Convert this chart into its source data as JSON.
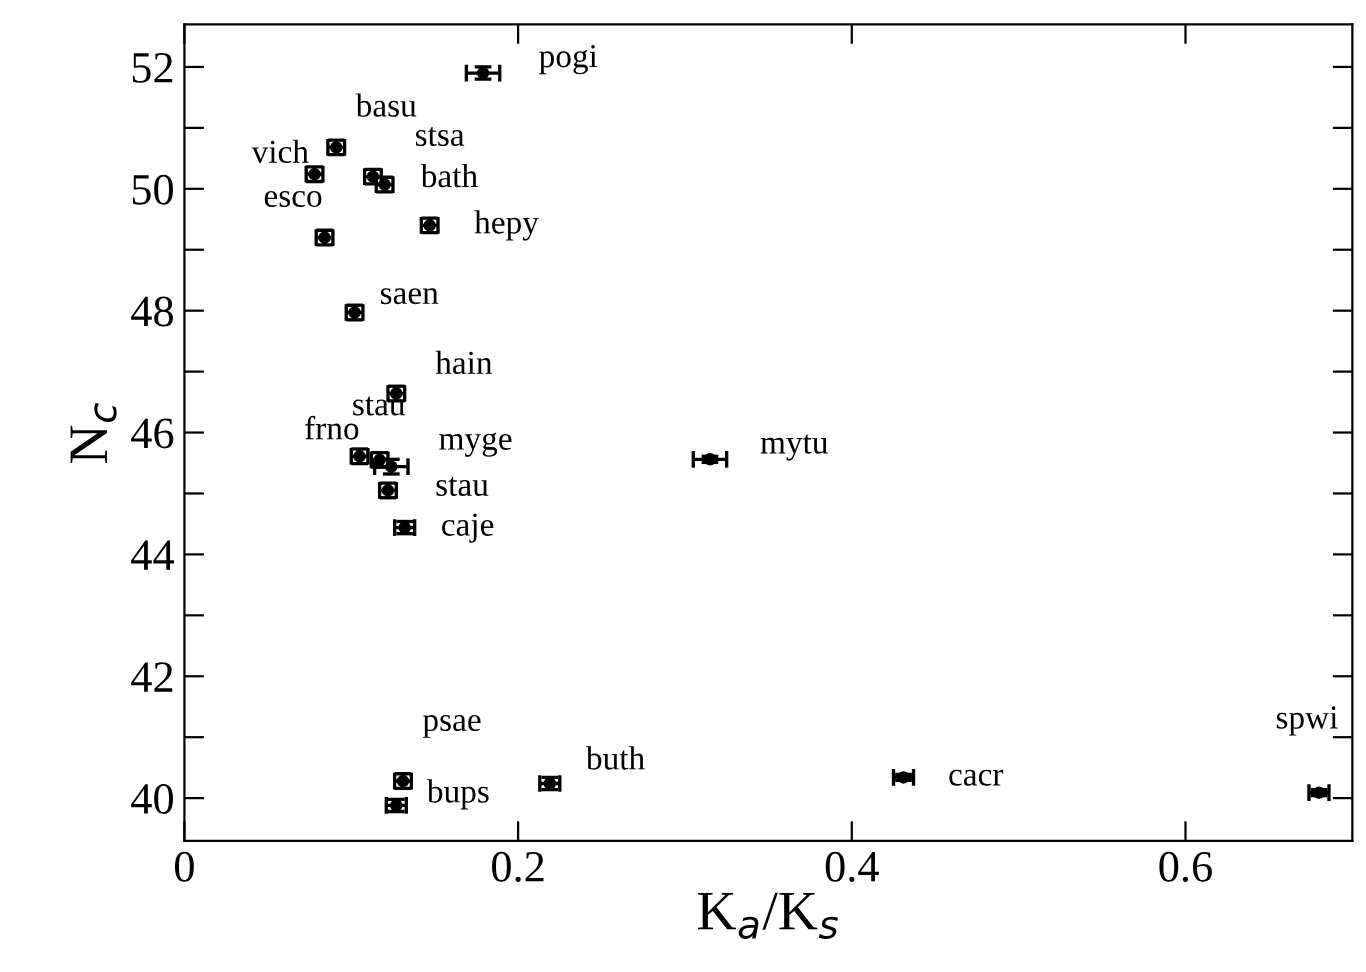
{
  "chart_data": {
    "type": "scatter",
    "xlabel": "K$_{a}$/K$_{s}$",
    "ylabel": "N$_{c}$",
    "x": [
      0.179,
      0.091,
      0.078,
      0.113,
      0.12,
      0.147,
      0.084,
      0.102,
      0.127,
      0.105,
      0.117,
      0.124,
      0.122,
      0.132,
      0.315,
      0.219,
      0.131,
      0.127,
      0.431,
      0.68
    ],
    "values": [
      51.9,
      50.68,
      50.24,
      50.2,
      50.07,
      49.4,
      49.2,
      47.97,
      46.64,
      45.61,
      45.55,
      45.44,
      45.05,
      44.44,
      45.56,
      40.24,
      40.28,
      39.88,
      40.34,
      40.09
    ],
    "xerrors": [
      0.01,
      0.005,
      0.005,
      0.005,
      0.005,
      0.005,
      0.005,
      0.005,
      0.005,
      0.005,
      0.005,
      0.01,
      0.005,
      0.006,
      0.01,
      0.006,
      0.005,
      0.006,
      0.006,
      0.006
    ],
    "errors": [
      0.1,
      0.12,
      0.12,
      0.12,
      0.12,
      0.12,
      0.12,
      0.12,
      0.12,
      0.12,
      0.12,
      0.12,
      0.12,
      0.1,
      0.05,
      0.1,
      0.12,
      0.1,
      0.05,
      0.05
    ],
    "color": "#000000",
    "marker": "circle",
    "annotations": [
      {
        "text": "pogi",
        "x": 0.179,
        "y": 51.9
      },
      {
        "text": "basu",
        "x": 0.091,
        "y": 50.68
      },
      {
        "text": "vich",
        "x": 0.078,
        "y": 50.24
      },
      {
        "text": "stsa",
        "x": 0.113,
        "y": 50.2
      },
      {
        "text": "bath",
        "x": 0.12,
        "y": 50.07
      },
      {
        "text": "hepy",
        "x": 0.147,
        "y": 49.4
      },
      {
        "text": "esco",
        "x": 0.084,
        "y": 49.2
      },
      {
        "text": "saen",
        "x": 0.102,
        "y": 47.97
      },
      {
        "text": "hain",
        "x": 0.127,
        "y": 46.64
      },
      {
        "text": "frno",
        "x": 0.105,
        "y": 45.61
      },
      {
        "text": "stau",
        "x": 0.117,
        "y": 45.55
      },
      {
        "text": "myge",
        "x": 0.124,
        "y": 45.44
      },
      {
        "text": "stau",
        "x": 0.122,
        "y": 45.05
      },
      {
        "text": "caje",
        "x": 0.132,
        "y": 44.44
      },
      {
        "text": "mytu",
        "x": 0.315,
        "y": 45.56
      },
      {
        "text": "buth",
        "x": 0.219,
        "y": 40.24
      },
      {
        "text": "psae",
        "x": 0.131,
        "y": 40.28
      },
      {
        "text": "bups",
        "x": 0.127,
        "y": 39.88
      },
      {
        "text": "cacr",
        "x": 0.431,
        "y": 40.34
      },
      {
        "text": "spwi",
        "x": 0.68,
        "y": 40.09
      }
    ],
    "xlim": [
      0,
      0.7
    ],
    "ylim": [
      39.3,
      52.7
    ],
    "xticks": [
      0,
      0.2,
      0.4,
      0.6
    ],
    "yticks": [
      40,
      {
        "value": 41,
        "label": null
      },
      42,
      {
        "value": 43,
        "label": null
      },
      44,
      {
        "value": 45,
        "label": null
      },
      46,
      {
        "value": 47,
        "label": null
      },
      48,
      {
        "value": 49,
        "label": null
      },
      50,
      {
        "value": 51,
        "label": null
      },
      52
    ],
    "grid": false,
    "legend": false
  }
}
